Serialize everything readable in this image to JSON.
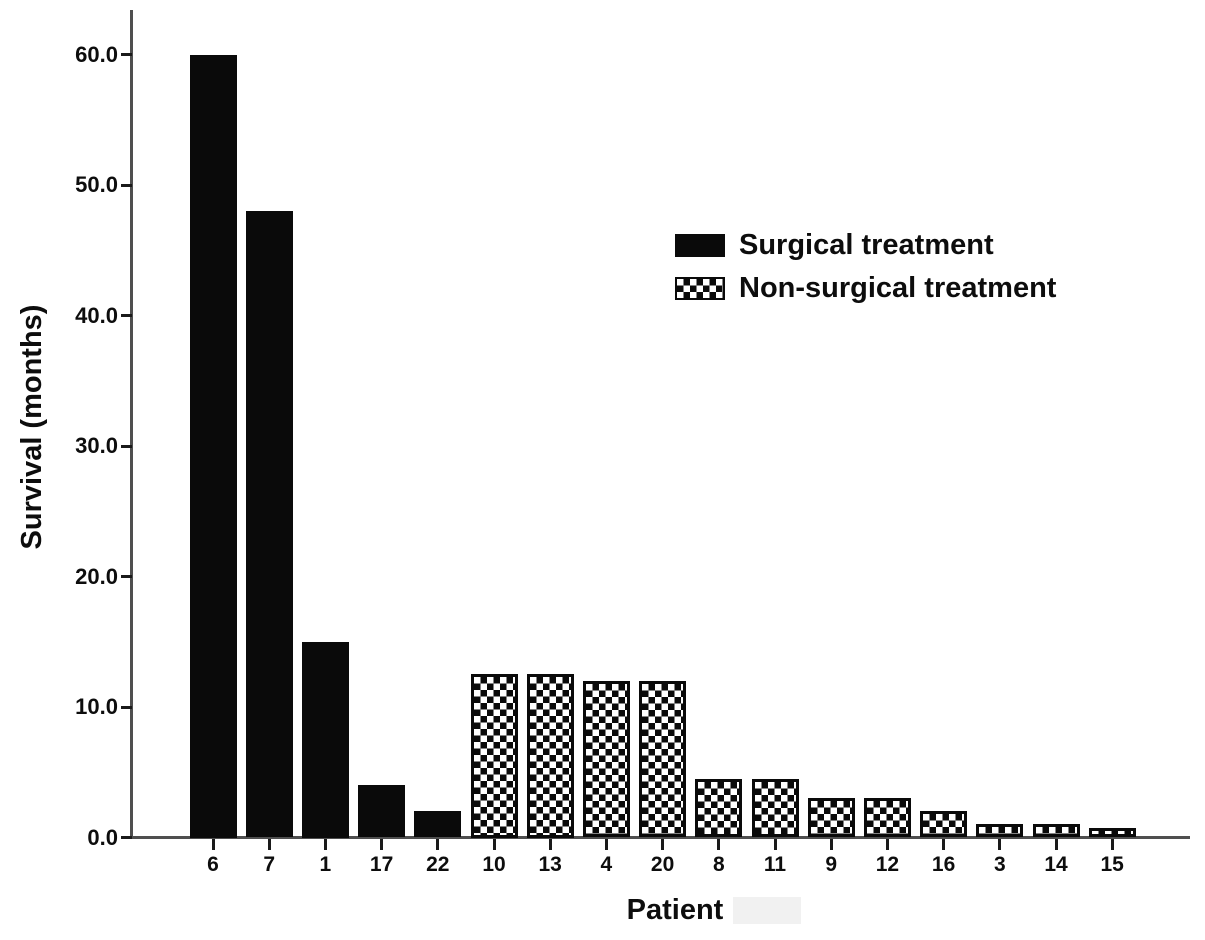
{
  "chart_data": {
    "type": "bar",
    "title": "",
    "xlabel": "Patient",
    "ylabel": "Survival (months)",
    "ylim": [
      0,
      63
    ],
    "yticks": [
      0,
      10,
      20,
      30,
      40,
      50,
      60
    ],
    "ytick_labels": [
      "0.0",
      "10.0",
      "20.0",
      "30.0",
      "40.0",
      "50.0",
      "60.0"
    ],
    "grid": false,
    "legend_position": "upper-right-inside",
    "categories": [
      "6",
      "7",
      "1",
      "17",
      "22",
      "10",
      "13",
      "4",
      "20",
      "8",
      "11",
      "9",
      "12",
      "16",
      "3",
      "14",
      "15"
    ],
    "bars": [
      {
        "patient": "6",
        "survival": 60.0,
        "treatment": "surgical"
      },
      {
        "patient": "7",
        "survival": 48.0,
        "treatment": "surgical"
      },
      {
        "patient": "1",
        "survival": 15.0,
        "treatment": "surgical"
      },
      {
        "patient": "17",
        "survival": 4.0,
        "treatment": "surgical"
      },
      {
        "patient": "22",
        "survival": 2.0,
        "treatment": "surgical"
      },
      {
        "patient": "10",
        "survival": 12.5,
        "treatment": "non-surgical"
      },
      {
        "patient": "13",
        "survival": 12.5,
        "treatment": "non-surgical"
      },
      {
        "patient": "4",
        "survival": 12.0,
        "treatment": "non-surgical"
      },
      {
        "patient": "20",
        "survival": 12.0,
        "treatment": "non-surgical"
      },
      {
        "patient": "8",
        "survival": 4.5,
        "treatment": "non-surgical"
      },
      {
        "patient": "11",
        "survival": 4.5,
        "treatment": "non-surgical"
      },
      {
        "patient": "9",
        "survival": 3.0,
        "treatment": "non-surgical"
      },
      {
        "patient": "12",
        "survival": 3.0,
        "treatment": "non-surgical"
      },
      {
        "patient": "16",
        "survival": 2.0,
        "treatment": "non-surgical"
      },
      {
        "patient": "3",
        "survival": 1.0,
        "treatment": "non-surgical"
      },
      {
        "patient": "14",
        "survival": 1.0,
        "treatment": "non-surgical"
      },
      {
        "patient": "15",
        "survival": 0.7,
        "treatment": "non-surgical"
      }
    ],
    "legend": [
      {
        "label": "Surgical treatment",
        "pattern": "solid",
        "treatment": "surgical"
      },
      {
        "label": "Non-surgical treatment",
        "pattern": "checker",
        "treatment": "non-surgical"
      }
    ],
    "colors": {
      "bar_fill": "#0a0a0a",
      "checker_fill": "#ffffff",
      "axis": "#4f4f4f",
      "text": "#0d0d0d",
      "background": "#ffffff"
    }
  }
}
